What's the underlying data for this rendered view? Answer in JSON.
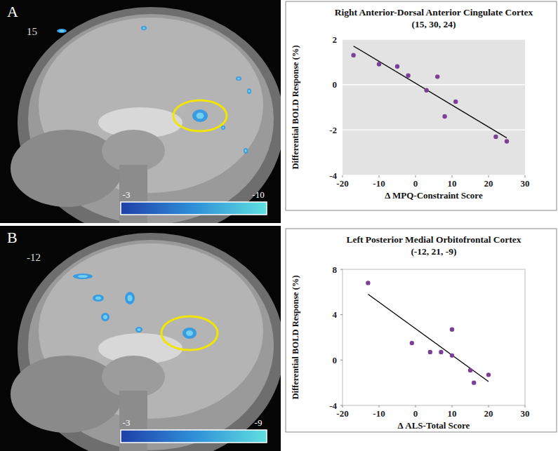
{
  "chart_data": [
    {
      "type": "scatter",
      "title": "Right Anterior-Dorsal Anterior Cingulate Cortex",
      "subtitle": "(15, 30, 24)",
      "x_label": "Δ MPQ-Constraint Score",
      "y_label": "Differential BOLD Response (%)",
      "x": [
        -17,
        -10,
        -5,
        -2,
        3,
        6,
        8,
        11,
        22,
        25
      ],
      "values": [
        1.3,
        0.9,
        0.8,
        0.4,
        -0.25,
        0.35,
        -1.4,
        -0.75,
        -2.3,
        -2.5
      ],
      "color": "#7b3f98",
      "marker": "circle",
      "xlim": [
        -20,
        30
      ],
      "xticks": [
        -20,
        -10,
        0,
        10,
        20,
        30
      ],
      "ylim": [
        -4,
        2
      ],
      "yticks": [
        -4,
        -2,
        0,
        2
      ],
      "grid": true,
      "trend_line": {
        "x": [
          -17,
          25
        ],
        "values": [
          1.7,
          -2.35
        ]
      }
    },
    {
      "type": "scatter",
      "title": "Left Posterior Medial Orbitofrontal Cortex",
      "subtitle": "(-12, 21, -9)",
      "x_label": "Δ ALS-Total Score",
      "y_label": "Differential BOLD Response (%)",
      "x": [
        -13,
        -1,
        4,
        7,
        10,
        10,
        15,
        16,
        20
      ],
      "values": [
        6.8,
        1.5,
        0.7,
        0.7,
        2.7,
        0.4,
        -0.9,
        -2.0,
        -1.3
      ],
      "color": "#7b3f98",
      "marker": "circle",
      "xlim": [
        -20,
        30
      ],
      "xticks": [
        -20,
        -10,
        0,
        10,
        20,
        30
      ],
      "ylim": [
        -4,
        8
      ],
      "yticks": [
        -4,
        0,
        4,
        8
      ],
      "grid": false,
      "trend_line": {
        "x": [
          -13,
          20
        ],
        "values": [
          5.8,
          -1.9
        ]
      }
    }
  ],
  "brain_panels": [
    {
      "label": "A",
      "slice": "15",
      "colorbar_ticks": [
        -3,
        -10
      ]
    },
    {
      "label": "B",
      "slice": "-12",
      "colorbar_ticks": [
        -3,
        -9
      ]
    }
  ]
}
